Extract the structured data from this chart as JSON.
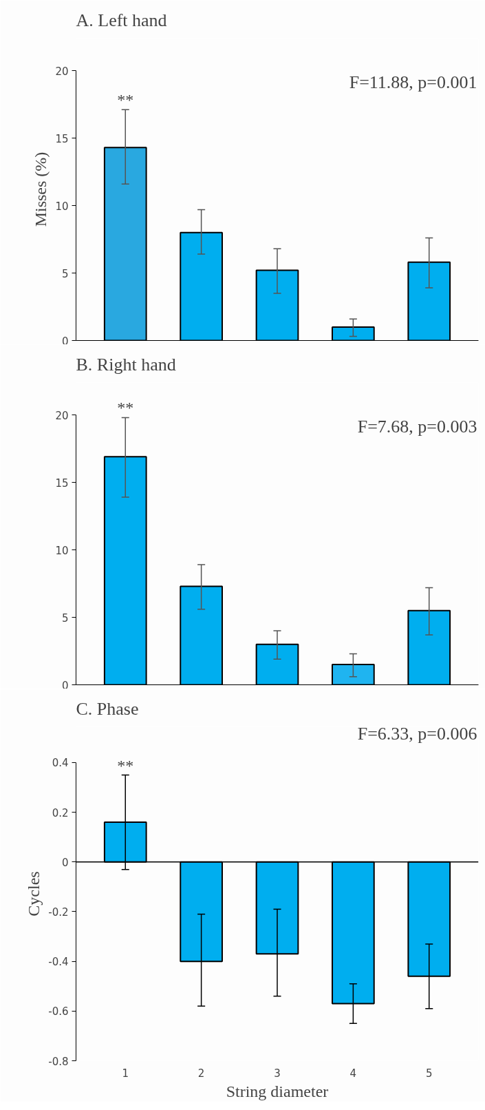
{
  "chart_data": [
    {
      "type": "bar",
      "title": "A. Left hand",
      "ylabel": "Misses (%)",
      "categories": [
        "1",
        "2",
        "3",
        "4",
        "5"
      ],
      "values": [
        14.3,
        8.0,
        5.2,
        1.0,
        5.8
      ],
      "errors": [
        [
          11.6,
          17.1
        ],
        [
          6.4,
          9.7
        ],
        [
          3.5,
          6.8
        ],
        [
          0.3,
          1.6
        ],
        [
          3.9,
          7.6
        ]
      ],
      "colors": [
        "#29a8e0",
        "#00aeef",
        "#00aeef",
        "#00aeef",
        "#00aeef"
      ],
      "ylim": [
        0,
        20
      ],
      "yticks": [
        0,
        5,
        10,
        15,
        20
      ],
      "tick_labels": "y",
      "annotations": [
        {
          "text": "**",
          "x": "1",
          "y": 17.1
        },
        "F=11.88, p=0.001"
      ]
    },
    {
      "type": "bar",
      "title": "B. Right hand",
      "categories": [
        "1",
        "2",
        "3",
        "4",
        "5"
      ],
      "values": [
        16.9,
        7.3,
        3.0,
        1.5,
        5.5
      ],
      "errors": [
        [
          13.9,
          19.8
        ],
        [
          5.6,
          8.9
        ],
        [
          1.9,
          4.0
        ],
        [
          0.6,
          2.3
        ],
        [
          3.7,
          7.2
        ]
      ],
      "colors": [
        "#00aeef",
        "#00aeef",
        "#00aeef",
        "#1fb4f0",
        "#00aeef"
      ],
      "ylim": [
        0,
        20
      ],
      "yticks": [
        0,
        5,
        10,
        15,
        20
      ],
      "tick_labels": "y",
      "annotations": [
        {
          "text": "**",
          "x": "1",
          "y": 19.8
        },
        "F=7.68, p=0.003"
      ]
    },
    {
      "type": "bar",
      "title": "C. Phase",
      "xlabel": "String diameter",
      "ylabel": "Cycles",
      "categories": [
        "1",
        "2",
        "3",
        "4",
        "5"
      ],
      "values": [
        0.16,
        -0.4,
        -0.37,
        -0.57,
        -0.46
      ],
      "errors": [
        [
          -0.03,
          0.35
        ],
        [
          -0.58,
          -0.21
        ],
        [
          -0.54,
          -0.19
        ],
        [
          -0.65,
          -0.49
        ],
        [
          -0.59,
          -0.33
        ]
      ],
      "colors": [
        "#00aeef",
        "#00aeef",
        "#00aeef",
        "#00aeef",
        "#00aeef"
      ],
      "ylim": [
        -0.8,
        0.4
      ],
      "yticks": [
        -0.8,
        -0.6,
        -0.4,
        -0.2,
        0,
        0.2,
        0.4
      ],
      "annotations": [
        {
          "text": "**",
          "x": "1",
          "y": 0.35
        },
        "F=6.33, p=0.006"
      ]
    }
  ]
}
